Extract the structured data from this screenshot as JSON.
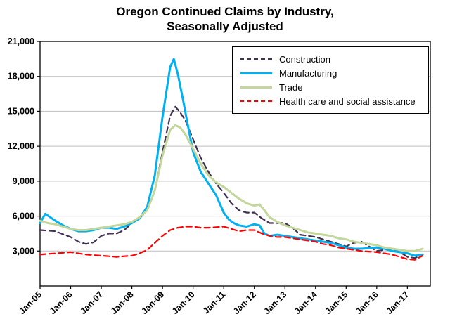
{
  "title": {
    "line1": "Oregon Continued Claims by Industry,",
    "line2": "Seasonally Adjusted"
  },
  "chart_data": {
    "type": "line",
    "title": "Oregon Continued Claims by Industry, Seasonally Adjusted",
    "xlabel": "",
    "ylabel": "",
    "x_range": [
      2005,
      2017.75
    ],
    "ylim": [
      0,
      21000
    ],
    "grid": "horizontal",
    "gridline_color": "#bfbfbf",
    "axis_color": "#000000",
    "legend_position": "inside-top-right",
    "ytick_values": [
      3000,
      6000,
      9000,
      12000,
      15000,
      18000,
      21000
    ],
    "ytick_labels": [
      "3,000",
      "6,000",
      "9,000",
      "12,000",
      "15,000",
      "18,000",
      "21,000"
    ],
    "xtick_values": [
      2005,
      2006,
      2007,
      2008,
      2009,
      2010,
      2011,
      2012,
      2013,
      2014,
      2015,
      2016,
      2017
    ],
    "xtick_labels": [
      "Jan-05",
      "Jan-06",
      "Jan-07",
      "Jan-08",
      "Jan-09",
      "Jan-10",
      "Jan-11",
      "Jan-12",
      "Jan-13",
      "Jan-14",
      "Jan-15",
      "Jan-16",
      "Jan-17"
    ],
    "series": [
      {
        "name": "Construction",
        "color": "#403152",
        "dashed": true,
        "width": 2.2,
        "points": [
          [
            2005,
            4800
          ],
          [
            2005.25,
            4750
          ],
          [
            2005.5,
            4700
          ],
          [
            2005.75,
            4450
          ],
          [
            2006,
            4200
          ],
          [
            2006.25,
            3800
          ],
          [
            2006.5,
            3600
          ],
          [
            2006.75,
            3750
          ],
          [
            2007,
            4300
          ],
          [
            2007.25,
            4500
          ],
          [
            2007.5,
            4500
          ],
          [
            2007.75,
            4800
          ],
          [
            2008,
            5400
          ],
          [
            2008.25,
            5800
          ],
          [
            2008.5,
            6500
          ],
          [
            2008.75,
            8200
          ],
          [
            2009,
            11500
          ],
          [
            2009.25,
            14600
          ],
          [
            2009.42,
            15400
          ],
          [
            2009.58,
            14900
          ],
          [
            2009.75,
            14200
          ],
          [
            2010,
            12600
          ],
          [
            2010.25,
            11000
          ],
          [
            2010.5,
            9800
          ],
          [
            2010.75,
            8800
          ],
          [
            2011,
            8000
          ],
          [
            2011.25,
            7100
          ],
          [
            2011.5,
            6500
          ],
          [
            2011.75,
            6300
          ],
          [
            2012,
            6300
          ],
          [
            2012.25,
            5800
          ],
          [
            2012.5,
            5400
          ],
          [
            2012.75,
            5400
          ],
          [
            2013,
            5400
          ],
          [
            2013.25,
            5000
          ],
          [
            2013.5,
            4400
          ],
          [
            2013.75,
            4300
          ],
          [
            2014,
            4200
          ],
          [
            2014.25,
            4000
          ],
          [
            2014.5,
            3800
          ],
          [
            2014.75,
            3600
          ],
          [
            2015,
            3400
          ],
          [
            2015.25,
            3700
          ],
          [
            2015.5,
            3800
          ],
          [
            2015.75,
            3400
          ],
          [
            2016,
            3000
          ],
          [
            2016.25,
            3100
          ],
          [
            2016.5,
            3200
          ],
          [
            2016.75,
            2900
          ],
          [
            2017,
            2500
          ],
          [
            2017.25,
            2400
          ],
          [
            2017.5,
            2700
          ]
        ]
      },
      {
        "name": "Manufacturing",
        "color": "#00b0f0",
        "dashed": false,
        "width": 3,
        "points": [
          [
            2005,
            5400
          ],
          [
            2005.17,
            6200
          ],
          [
            2005.33,
            5900
          ],
          [
            2005.5,
            5600
          ],
          [
            2005.75,
            5200
          ],
          [
            2006,
            4900
          ],
          [
            2006.25,
            4700
          ],
          [
            2006.5,
            4700
          ],
          [
            2006.75,
            4800
          ],
          [
            2007,
            5000
          ],
          [
            2007.25,
            5000
          ],
          [
            2007.5,
            4900
          ],
          [
            2007.75,
            5100
          ],
          [
            2008,
            5400
          ],
          [
            2008.25,
            5800
          ],
          [
            2008.5,
            6800
          ],
          [
            2008.75,
            9500
          ],
          [
            2009,
            14500
          ],
          [
            2009.25,
            18800
          ],
          [
            2009.37,
            19500
          ],
          [
            2009.5,
            18200
          ],
          [
            2009.67,
            16000
          ],
          [
            2009.83,
            13800
          ],
          [
            2010,
            11500
          ],
          [
            2010.25,
            9800
          ],
          [
            2010.5,
            8800
          ],
          [
            2010.75,
            7800
          ],
          [
            2011,
            6300
          ],
          [
            2011.17,
            5700
          ],
          [
            2011.33,
            5400
          ],
          [
            2011.5,
            5200
          ],
          [
            2011.75,
            5100
          ],
          [
            2012,
            5300
          ],
          [
            2012.17,
            5200
          ],
          [
            2012.33,
            4500
          ],
          [
            2012.5,
            4300
          ],
          [
            2012.75,
            4400
          ],
          [
            2013,
            4300
          ],
          [
            2013.25,
            4200
          ],
          [
            2013.5,
            4100
          ],
          [
            2013.75,
            4000
          ],
          [
            2014,
            3900
          ],
          [
            2014.25,
            3800
          ],
          [
            2014.5,
            3700
          ],
          [
            2014.75,
            3500
          ],
          [
            2015,
            3300
          ],
          [
            2015.25,
            3200
          ],
          [
            2015.5,
            3200
          ],
          [
            2015.75,
            3250
          ],
          [
            2016,
            3300
          ],
          [
            2016.25,
            3200
          ],
          [
            2016.5,
            3000
          ],
          [
            2016.75,
            2900
          ],
          [
            2017,
            2800
          ],
          [
            2017.25,
            2600
          ],
          [
            2017.5,
            2700
          ]
        ]
      },
      {
        "name": "Trade",
        "color": "#c3d69b",
        "dashed": false,
        "width": 3,
        "points": [
          [
            2005,
            5600
          ],
          [
            2005.25,
            5400
          ],
          [
            2005.5,
            5300
          ],
          [
            2005.75,
            5100
          ],
          [
            2006,
            4900
          ],
          [
            2006.25,
            4800
          ],
          [
            2006.5,
            4800
          ],
          [
            2006.75,
            4900
          ],
          [
            2007,
            5000
          ],
          [
            2007.25,
            5100
          ],
          [
            2007.5,
            5200
          ],
          [
            2007.75,
            5300
          ],
          [
            2008,
            5500
          ],
          [
            2008.25,
            5900
          ],
          [
            2008.5,
            6500
          ],
          [
            2008.75,
            8200
          ],
          [
            2009,
            11200
          ],
          [
            2009.25,
            13400
          ],
          [
            2009.42,
            13800
          ],
          [
            2009.58,
            13600
          ],
          [
            2009.75,
            13000
          ],
          [
            2010,
            11800
          ],
          [
            2010.25,
            10500
          ],
          [
            2010.5,
            9500
          ],
          [
            2010.75,
            8900
          ],
          [
            2011,
            8500
          ],
          [
            2011.25,
            8000
          ],
          [
            2011.5,
            7500
          ],
          [
            2011.75,
            7100
          ],
          [
            2012,
            6900
          ],
          [
            2012.17,
            7000
          ],
          [
            2012.33,
            6500
          ],
          [
            2012.5,
            5900
          ],
          [
            2012.75,
            5500
          ],
          [
            2013,
            5200
          ],
          [
            2013.25,
            5000
          ],
          [
            2013.5,
            4800
          ],
          [
            2013.75,
            4600
          ],
          [
            2014,
            4500
          ],
          [
            2014.25,
            4400
          ],
          [
            2014.5,
            4300
          ],
          [
            2014.75,
            4100
          ],
          [
            2015,
            4000
          ],
          [
            2015.25,
            3800
          ],
          [
            2015.5,
            3700
          ],
          [
            2015.75,
            3600
          ],
          [
            2016,
            3500
          ],
          [
            2016.25,
            3300
          ],
          [
            2016.5,
            3200
          ],
          [
            2016.75,
            3100
          ],
          [
            2017,
            3000
          ],
          [
            2017.25,
            3000
          ],
          [
            2017.5,
            3200
          ]
        ]
      },
      {
        "name": "Health care and social assistance",
        "color": "#ff0000",
        "dashed": true,
        "width": 2.2,
        "points": [
          [
            2005,
            2700
          ],
          [
            2005.25,
            2750
          ],
          [
            2005.5,
            2800
          ],
          [
            2005.75,
            2850
          ],
          [
            2006,
            2900
          ],
          [
            2006.25,
            2800
          ],
          [
            2006.5,
            2700
          ],
          [
            2006.75,
            2650
          ],
          [
            2007,
            2600
          ],
          [
            2007.25,
            2550
          ],
          [
            2007.5,
            2500
          ],
          [
            2007.75,
            2550
          ],
          [
            2008,
            2600
          ],
          [
            2008.25,
            2800
          ],
          [
            2008.5,
            3100
          ],
          [
            2008.75,
            3700
          ],
          [
            2009,
            4300
          ],
          [
            2009.25,
            4800
          ],
          [
            2009.5,
            5000
          ],
          [
            2009.75,
            5100
          ],
          [
            2010,
            5100
          ],
          [
            2010.25,
            5000
          ],
          [
            2010.5,
            5000
          ],
          [
            2010.75,
            5050
          ],
          [
            2011,
            5100
          ],
          [
            2011.25,
            4900
          ],
          [
            2011.5,
            4700
          ],
          [
            2011.75,
            4800
          ],
          [
            2012,
            4800
          ],
          [
            2012.25,
            4500
          ],
          [
            2012.5,
            4300
          ],
          [
            2012.75,
            4200
          ],
          [
            2013,
            4200
          ],
          [
            2013.25,
            4100
          ],
          [
            2013.5,
            4000
          ],
          [
            2013.75,
            3900
          ],
          [
            2014,
            3800
          ],
          [
            2014.25,
            3600
          ],
          [
            2014.5,
            3500
          ],
          [
            2014.75,
            3300
          ],
          [
            2015,
            3200
          ],
          [
            2015.25,
            3100
          ],
          [
            2015.5,
            3000
          ],
          [
            2015.75,
            2950
          ],
          [
            2016,
            2900
          ],
          [
            2016.25,
            2800
          ],
          [
            2016.5,
            2700
          ],
          [
            2016.75,
            2500
          ],
          [
            2017,
            2300
          ],
          [
            2017.25,
            2250
          ],
          [
            2017.5,
            2600
          ]
        ]
      }
    ]
  }
}
